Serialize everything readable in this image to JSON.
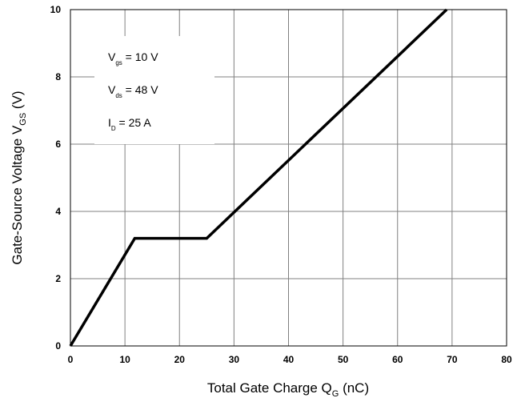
{
  "chart_data": {
    "type": "line",
    "xlabel_main": "Total Gate Charge Q",
    "xlabel_sub": "G",
    "xlabel_tail": " (nC)",
    "ylabel_main": "Gate-Source Voltage V",
    "ylabel_sub": "GS",
    "ylabel_tail": " (V)",
    "xlim": [
      0,
      80
    ],
    "ylim": [
      0,
      10
    ],
    "x_ticks": [
      "0",
      "10",
      "20",
      "30",
      "40",
      "50",
      "60",
      "70",
      "80"
    ],
    "y_ticks": [
      "0",
      "2",
      "4",
      "6",
      "8",
      "10"
    ],
    "grid": true,
    "series": [
      {
        "x": [
          0,
          11.8,
          25,
          69
        ],
        "y": [
          0,
          3.2,
          3.2,
          10
        ],
        "color": "#000000"
      }
    ],
    "annotations": [
      {
        "main": "V",
        "sub": "gs",
        "tail": " = 10 V"
      },
      {
        "main": "V",
        "sub": "ds",
        "tail": " = 48 V"
      },
      {
        "main": "I",
        "sub": "D",
        "tail": " = 25 A"
      }
    ]
  }
}
